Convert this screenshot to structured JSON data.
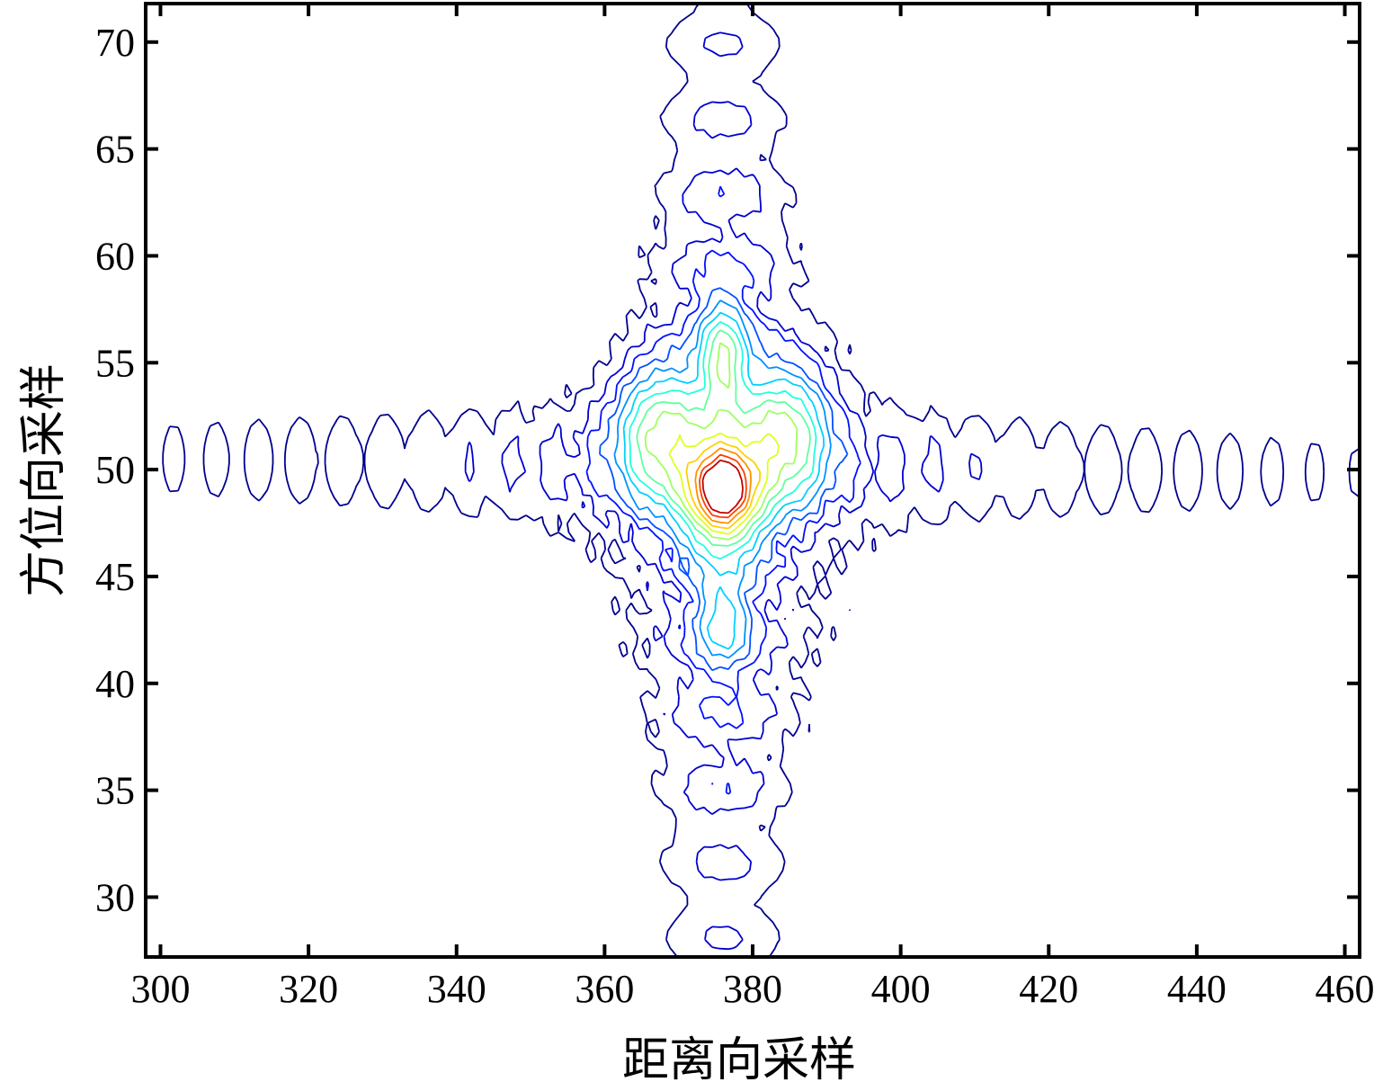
{
  "chart_data": {
    "type": "contour",
    "xlabel": "距离向采样",
    "ylabel": "方位向采样",
    "xlim": [
      298,
      462
    ],
    "ylim": [
      27.2,
      71.8
    ],
    "xticks": [
      300,
      320,
      340,
      360,
      380,
      400,
      420,
      440,
      460
    ],
    "yticks": [
      30,
      35,
      40,
      45,
      50,
      55,
      60,
      65,
      70
    ],
    "colormap": "jet",
    "grid": false,
    "peak": {
      "x": 376,
      "y": 49
    },
    "levels": [
      0.03,
      0.06,
      0.09,
      0.13,
      0.18,
      0.24,
      0.31,
      0.39,
      0.48,
      0.58,
      0.68,
      0.78,
      0.88,
      0.96
    ],
    "level_colors": [
      "#00008f",
      "#0000d0",
      "#0010ff",
      "#0050ff",
      "#0090ff",
      "#00d0ff",
      "#20ffdf",
      "#60ff9f",
      "#a0ff60",
      "#dfff20",
      "#ffd000",
      "#ff9000",
      "#ff4000",
      "#c00000"
    ]
  }
}
